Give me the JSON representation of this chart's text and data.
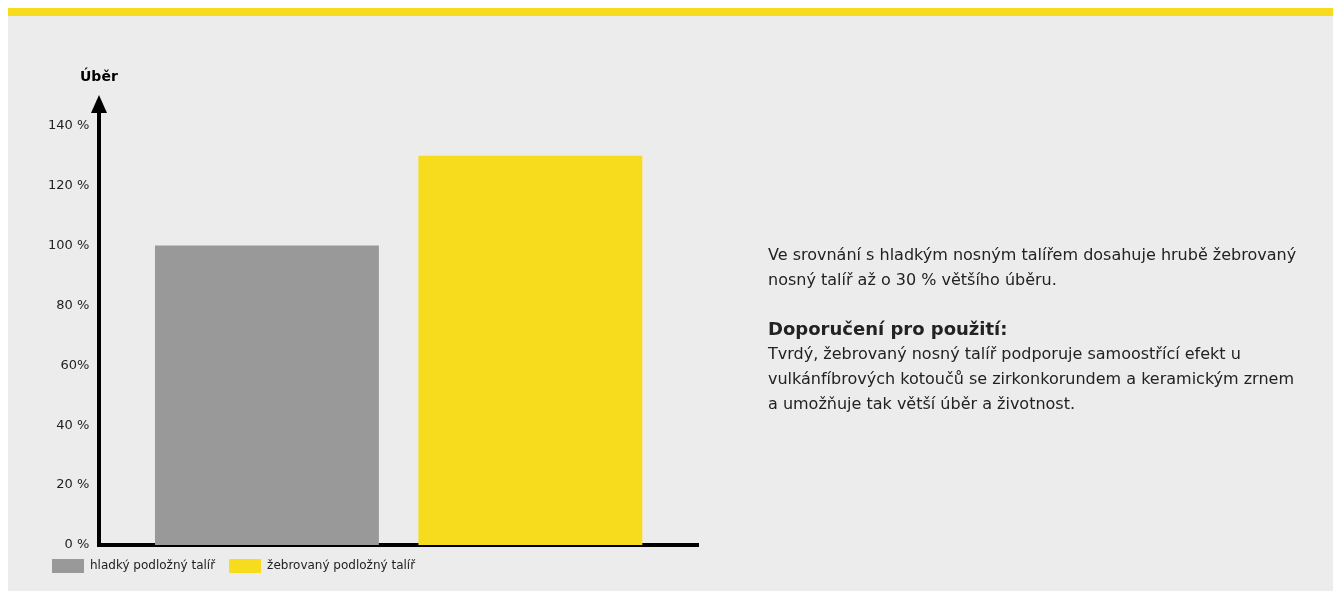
{
  "chart_data": {
    "type": "bar",
    "ylabel": "Úběr",
    "categories": [
      null
    ],
    "series": [
      {
        "name": "hladký podložný talíř",
        "color": "#999999",
        "values": [
          100
        ]
      },
      {
        "name": "žebrovaný podložný talíř",
        "color": "#f7dc1e",
        "values": [
          130
        ]
      }
    ],
    "ylim": [
      0,
      145
    ],
    "yticks": [
      {
        "value": 0,
        "label": "0 %"
      },
      {
        "value": 20,
        "label": "20 %"
      },
      {
        "value": 40,
        "label": "40 %"
      },
      {
        "value": 60,
        "label": "60%"
      },
      {
        "value": 80,
        "label": "80 %"
      },
      {
        "value": 100,
        "label": "100 %"
      },
      {
        "value": 120,
        "label": "120 %"
      },
      {
        "value": 140,
        "label": "140 %"
      }
    ],
    "grid": false,
    "legend": "bottom left",
    "annotations": [
      "Ve srovnání s hladkým nosným talířem dosahuje hrubě žebrovaný nosný talíř až o 30 % většího úběru.",
      "Doporučení pro použití:",
      "Tvrdý, žebrovaný nosný talíř podporuje samoostřící efekt u vulkánfíbrových kotoučů se zirkonkorundem a keramickým zrnem a umožňuje tak větší úběr a životnost."
    ]
  }
}
